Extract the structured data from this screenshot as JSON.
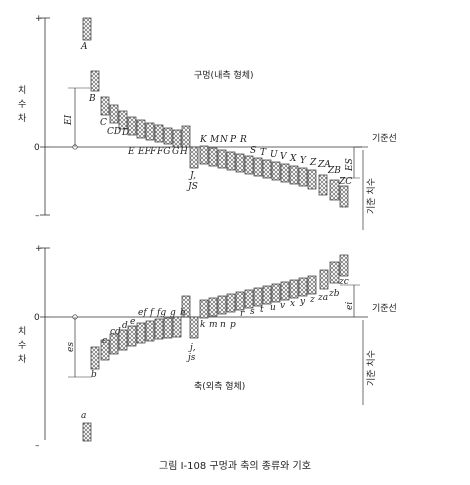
{
  "caption": "그림 Ⅰ-108 구멍과 축의 종류와 기호",
  "axis": {
    "plus": "+",
    "zero": "0",
    "minus": "–",
    "deviation_label": [
      "치",
      "수",
      "차"
    ],
    "zero_line_label": "기준선",
    "basic_size_label": "기준 치수"
  },
  "holes": {
    "title": "구멍(내측 형체)",
    "lower_dev_label": "EI",
    "upper_dev_label": "ES",
    "letters_above": [
      "A",
      "B",
      "C",
      "CD",
      "D",
      "E",
      "EF",
      "F",
      "FG",
      "G",
      "H"
    ],
    "js_label": [
      "J,",
      "JS"
    ],
    "letters_below": [
      "K",
      "M",
      "N",
      "P",
      "R",
      "S",
      "T",
      "U",
      "V",
      "X",
      "Y",
      "Z",
      "ZA",
      "ZB",
      "ZC"
    ]
  },
  "shafts": {
    "title": "축(외측 형체)",
    "upper_dev_label": "es",
    "lower_dev_label": "ei",
    "letters_below": [
      "a",
      "b",
      "c",
      "cd",
      "d",
      "e",
      "ef",
      "f",
      "fg",
      "g",
      "h"
    ],
    "js_label": [
      "j,",
      "js"
    ],
    "letters_above": [
      "k",
      "m",
      "n",
      "p",
      "r",
      "s",
      "t",
      "u",
      "v",
      "x",
      "y",
      "z",
      "za",
      "zb",
      "zc"
    ]
  }
}
